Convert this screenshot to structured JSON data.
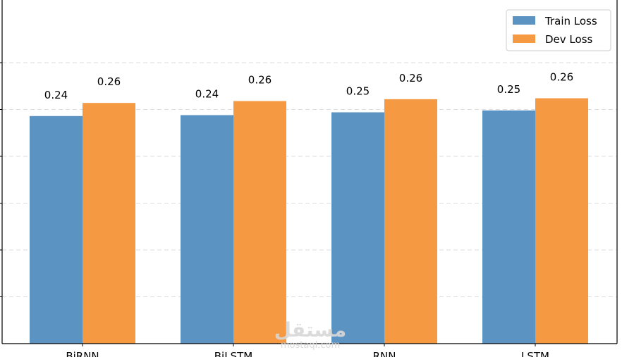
{
  "chart_data": {
    "type": "bar",
    "categories": [
      "BiRNN",
      "BiLSTM",
      "RNN",
      "LSTM"
    ],
    "series": [
      {
        "name": "Train Loss",
        "color": "#5b93c3",
        "values": [
          0.243,
          0.244,
          0.247,
          0.249
        ]
      },
      {
        "name": "Dev Loss",
        "color": "#f59a42",
        "values": [
          0.257,
          0.259,
          0.261,
          0.262
        ]
      }
    ],
    "data_labels": [
      [
        "0.24",
        "0.24",
        "0.25",
        "0.25"
      ],
      [
        "0.26",
        "0.26",
        "0.26",
        "0.26"
      ]
    ],
    "ylim": [
      0,
      0.35
    ],
    "grid": true,
    "grid_lines": [
      0.05,
      0.1,
      0.15,
      0.2,
      0.25,
      0.3
    ],
    "legend_position": "top-right"
  },
  "watermark": {
    "text": "مستقل",
    "subtext": "mostaql.com"
  }
}
